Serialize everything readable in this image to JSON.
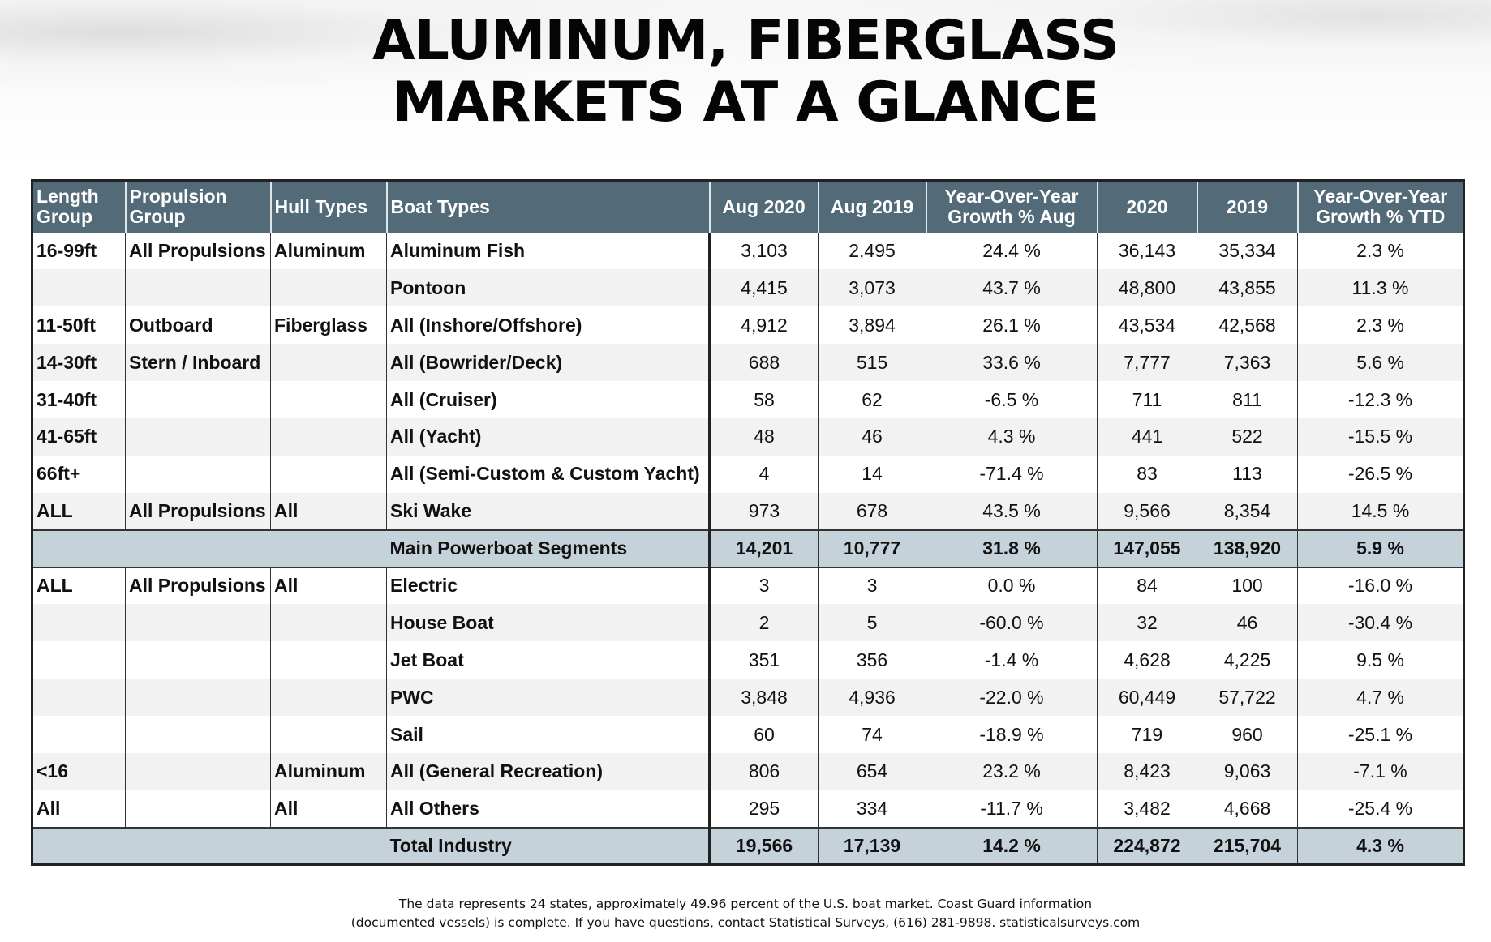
{
  "title": {
    "line1": "ALUMINUM, FIBERGLASS",
    "line2": "MARKETS AT A GLANCE"
  },
  "table": {
    "headers": {
      "length_group": "Length Group",
      "propulsion_group": "Propulsion Group",
      "hull_types": "Hull Types",
      "boat_types": "Boat Types",
      "aug_2020": "Aug 2020",
      "aug_2019": "Aug 2019",
      "yoy_aug": "Year-Over-Year Growth % Aug",
      "ytd_2020": "2020",
      "ytd_2019": "2019",
      "yoy_ytd": "Year-Over-Year Growth % YTD"
    },
    "rows": [
      {
        "length": "16-99ft",
        "propulsion": "All Propulsions",
        "hull": "Aluminum",
        "boat": "Aluminum Fish",
        "aug2020": "3,103",
        "aug2019": "2,495",
        "yoy_aug": "24.4 %",
        "y2020": "36,143",
        "y2019": "35,334",
        "yoy_ytd": "2.3 %"
      },
      {
        "length": "",
        "propulsion": "",
        "hull": "",
        "boat": "Pontoon",
        "aug2020": "4,415",
        "aug2019": "3,073",
        "yoy_aug": "43.7 %",
        "y2020": "48,800",
        "y2019": "43,855",
        "yoy_ytd": "11.3 %"
      },
      {
        "length": "11-50ft",
        "propulsion": "Outboard",
        "hull": "Fiberglass",
        "boat": "All (Inshore/Offshore)",
        "aug2020": "4,912",
        "aug2019": "3,894",
        "yoy_aug": "26.1 %",
        "y2020": "43,534",
        "y2019": "42,568",
        "yoy_ytd": "2.3 %"
      },
      {
        "length": "14-30ft",
        "propulsion": "Stern / Inboard",
        "hull": "",
        "boat": "All (Bowrider/Deck)",
        "aug2020": "688",
        "aug2019": "515",
        "yoy_aug": "33.6 %",
        "y2020": "7,777",
        "y2019": "7,363",
        "yoy_ytd": "5.6 %"
      },
      {
        "length": "31-40ft",
        "propulsion": "",
        "hull": "",
        "boat": "All (Cruiser)",
        "aug2020": "58",
        "aug2019": "62",
        "yoy_aug": "-6.5 %",
        "y2020": "711",
        "y2019": "811",
        "yoy_ytd": "-12.3 %"
      },
      {
        "length": "41-65ft",
        "propulsion": "",
        "hull": "",
        "boat": "All (Yacht)",
        "aug2020": "48",
        "aug2019": "46",
        "yoy_aug": "4.3 %",
        "y2020": "441",
        "y2019": "522",
        "yoy_ytd": "-15.5 %"
      },
      {
        "length": "66ft+",
        "propulsion": "",
        "hull": "",
        "boat": "All (Semi-Custom & Custom Yacht)",
        "aug2020": "4",
        "aug2019": "14",
        "yoy_aug": "-71.4 %",
        "y2020": "83",
        "y2019": "113",
        "yoy_ytd": "-26.5 %"
      },
      {
        "length": "ALL",
        "propulsion": "All Propulsions",
        "hull": "All",
        "boat": "Ski Wake",
        "aug2020": "973",
        "aug2019": "678",
        "yoy_aug": "43.5 %",
        "y2020": "9,566",
        "y2019": "8,354",
        "yoy_ytd": "14.5 %"
      }
    ],
    "subtotal": {
      "boat": "Main Powerboat Segments",
      "aug2020": "14,201",
      "aug2019": "10,777",
      "yoy_aug": "31.8 %",
      "y2020": "147,055",
      "y2019": "138,920",
      "yoy_ytd": "5.9 %"
    },
    "rows2": [
      {
        "length": "ALL",
        "propulsion": "All Propulsions",
        "hull": "All",
        "boat": "Electric",
        "aug2020": "3",
        "aug2019": "3",
        "yoy_aug": "0.0 %",
        "y2020": "84",
        "y2019": "100",
        "yoy_ytd": "-16.0 %"
      },
      {
        "length": "",
        "propulsion": "",
        "hull": "",
        "boat": "House Boat",
        "aug2020": "2",
        "aug2019": "5",
        "yoy_aug": "-60.0 %",
        "y2020": "32",
        "y2019": "46",
        "yoy_ytd": "-30.4 %"
      },
      {
        "length": "",
        "propulsion": "",
        "hull": "",
        "boat": "Jet Boat",
        "aug2020": "351",
        "aug2019": "356",
        "yoy_aug": "-1.4 %",
        "y2020": "4,628",
        "y2019": "4,225",
        "yoy_ytd": "9.5 %"
      },
      {
        "length": "",
        "propulsion": "",
        "hull": "",
        "boat": "PWC",
        "aug2020": "3,848",
        "aug2019": "4,936",
        "yoy_aug": "-22.0 %",
        "y2020": "60,449",
        "y2019": "57,722",
        "yoy_ytd": "4.7 %"
      },
      {
        "length": "",
        "propulsion": "",
        "hull": "",
        "boat": "Sail",
        "aug2020": "60",
        "aug2019": "74",
        "yoy_aug": "-18.9 %",
        "y2020": "719",
        "y2019": "960",
        "yoy_ytd": "-25.1 %"
      },
      {
        "length": "<16",
        "propulsion": "",
        "hull": "Aluminum",
        "boat": "All (General Recreation)",
        "aug2020": "806",
        "aug2019": "654",
        "yoy_aug": "23.2 %",
        "y2020": "8,423",
        "y2019": "9,063",
        "yoy_ytd": "-7.1 %"
      },
      {
        "length": "All",
        "propulsion": "",
        "hull": "All",
        "boat": "All Others",
        "aug2020": "295",
        "aug2019": "334",
        "yoy_aug": "-11.7 %",
        "y2020": "3,482",
        "y2019": "4,668",
        "yoy_ytd": "-25.4 %"
      }
    ],
    "total": {
      "boat": "Total Industry",
      "aug2020": "19,566",
      "aug2019": "17,139",
      "yoy_aug": "14.2 %",
      "y2020": "224,872",
      "y2019": "215,704",
      "yoy_ytd": "4.3 %"
    }
  },
  "footnote": {
    "line1": "The data represents 24 states, approximately 49.96 percent of the U.S. boat market. Coast Guard information",
    "line2": "(documented vessels) is complete. If you have questions, contact Statistical Surveys, (616) 281-9898. statisticalsurveys.com"
  },
  "colors": {
    "header_bg": "#536a78",
    "summary_bg": "#c5d2da",
    "stripe_bg": "#f2f2f2"
  }
}
